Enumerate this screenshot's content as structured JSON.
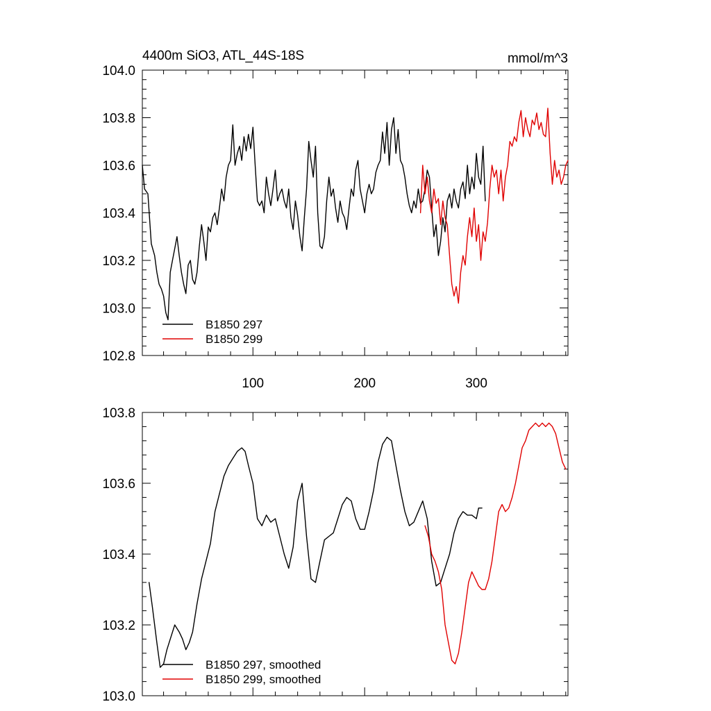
{
  "chart_data": [
    {
      "type": "line",
      "title": "4400m SiO3, ATL_44S-18S",
      "units": "mmol/m^3",
      "xlim": [
        1,
        382
      ],
      "ylim": [
        102.8,
        104.0
      ],
      "x_ticks": [
        100,
        200,
        300
      ],
      "x_tick_labels": [
        "100",
        "200",
        "300"
      ],
      "y_ticks": [
        102.8,
        103.0,
        103.2,
        103.4,
        103.6,
        103.8,
        104.0
      ],
      "y_tick_labels": [
        "102.8",
        "103.0",
        "103.2",
        "103.4",
        "103.6",
        "103.8",
        "104.0"
      ],
      "grid": false,
      "legend_position": "bottom-left",
      "series": [
        {
          "name": "B1850 297",
          "color": "#000000",
          "x": [
            1,
            3,
            6,
            9,
            12,
            14,
            16,
            18,
            20,
            22,
            24,
            26,
            28,
            30,
            32,
            34,
            36,
            38,
            40,
            42,
            44,
            46,
            48,
            50,
            52,
            54,
            56,
            58,
            60,
            62,
            64,
            66,
            68,
            70,
            72,
            74,
            76,
            78,
            80,
            82,
            84,
            86,
            88,
            90,
            92,
            94,
            96,
            98,
            100,
            102,
            104,
            106,
            108,
            110,
            112,
            114,
            116,
            118,
            120,
            122,
            124,
            126,
            128,
            130,
            132,
            134,
            136,
            138,
            140,
            142,
            144,
            146,
            148,
            150,
            152,
            154,
            156,
            158,
            160,
            162,
            164,
            166,
            168,
            170,
            172,
            174,
            176,
            178,
            180,
            182,
            184,
            186,
            188,
            190,
            192,
            194,
            196,
            198,
            200,
            202,
            204,
            206,
            208,
            210,
            212,
            214,
            216,
            218,
            220,
            222,
            224,
            226,
            228,
            230,
            232,
            234,
            236,
            238,
            240,
            242,
            244,
            246,
            248,
            250,
            252,
            254,
            256,
            258,
            260,
            262,
            264,
            266,
            268,
            270,
            272,
            274,
            276,
            278,
            280,
            282,
            284,
            286,
            288,
            290,
            292,
            294,
            296,
            298,
            300,
            302,
            304,
            306,
            308
          ],
          "values": [
            103.6,
            103.5,
            103.48,
            103.27,
            103.22,
            103.15,
            103.1,
            103.08,
            103.05,
            102.98,
            102.95,
            103.15,
            103.2,
            103.25,
            103.3,
            103.22,
            103.15,
            103.1,
            103.06,
            103.18,
            103.2,
            103.12,
            103.1,
            103.15,
            103.26,
            103.35,
            103.28,
            103.2,
            103.34,
            103.32,
            103.38,
            103.4,
            103.35,
            103.42,
            103.5,
            103.45,
            103.55,
            103.6,
            103.62,
            103.77,
            103.6,
            103.65,
            103.68,
            103.62,
            103.72,
            103.66,
            103.73,
            103.67,
            103.76,
            103.6,
            103.45,
            103.43,
            103.45,
            103.4,
            103.55,
            103.48,
            103.43,
            103.5,
            103.58,
            103.45,
            103.48,
            103.5,
            103.45,
            103.42,
            103.5,
            103.38,
            103.33,
            103.45,
            103.39,
            103.3,
            103.24,
            103.38,
            103.5,
            103.7,
            103.62,
            103.55,
            103.68,
            103.4,
            103.26,
            103.25,
            103.3,
            103.45,
            103.55,
            103.47,
            103.5,
            103.42,
            103.36,
            103.45,
            103.4,
            103.38,
            103.33,
            103.42,
            103.5,
            103.47,
            103.58,
            103.62,
            103.5,
            103.45,
            103.4,
            103.48,
            103.52,
            103.48,
            103.5,
            103.57,
            103.6,
            103.62,
            103.74,
            103.65,
            103.78,
            103.6,
            103.75,
            103.8,
            103.65,
            103.75,
            103.62,
            103.6,
            103.55,
            103.48,
            103.43,
            103.4,
            103.45,
            103.42,
            103.5,
            103.44,
            103.45,
            103.5,
            103.58,
            103.55,
            103.42,
            103.3,
            103.35,
            103.22,
            103.28,
            103.38,
            103.32,
            103.45,
            103.48,
            103.42,
            103.5,
            103.45,
            103.42,
            103.5,
            103.53,
            103.46,
            103.6,
            103.48,
            103.55,
            103.5,
            103.65,
            103.55,
            103.52,
            103.68,
            103.45
          ]
        },
        {
          "name": "B1850 299",
          "color": "#e00000",
          "x": [
            250,
            252,
            254,
            256,
            258,
            260,
            262,
            264,
            266,
            268,
            270,
            272,
            274,
            276,
            278,
            280,
            282,
            284,
            286,
            288,
            290,
            292,
            294,
            296,
            298,
            300,
            302,
            304,
            306,
            308,
            310,
            312,
            314,
            316,
            318,
            320,
            322,
            324,
            326,
            328,
            330,
            332,
            334,
            336,
            338,
            340,
            342,
            344,
            346,
            348,
            350,
            352,
            354,
            356,
            358,
            360,
            362,
            364,
            366,
            368,
            370,
            372,
            374,
            376,
            378,
            380,
            382
          ],
          "values": [
            103.4,
            103.6,
            103.48,
            103.55,
            103.45,
            103.4,
            103.5,
            103.44,
            103.46,
            103.35,
            103.45,
            103.38,
            103.35,
            103.22,
            103.1,
            103.05,
            103.09,
            103.02,
            103.15,
            103.22,
            103.18,
            103.3,
            103.38,
            103.3,
            103.42,
            103.28,
            103.35,
            103.2,
            103.32,
            103.28,
            103.36,
            103.5,
            103.6,
            103.55,
            103.58,
            103.48,
            103.58,
            103.45,
            103.55,
            103.6,
            103.7,
            103.68,
            103.72,
            103.7,
            103.78,
            103.83,
            103.72,
            103.8,
            103.75,
            103.72,
            103.79,
            103.77,
            103.82,
            103.75,
            103.78,
            103.73,
            103.72,
            103.84,
            103.65,
            103.52,
            103.62,
            103.55,
            103.58,
            103.52,
            103.55,
            103.6,
            103.62
          ]
        }
      ]
    },
    {
      "type": "line",
      "xlim": [
        1,
        382
      ],
      "ylim": [
        103.0,
        103.8
      ],
      "x_ticks": [
        100,
        200,
        300
      ],
      "y_ticks": [
        103.0,
        103.2,
        103.4,
        103.6,
        103.8
      ],
      "y_tick_labels": [
        "103.0",
        "103.2",
        "103.4",
        "103.6",
        "103.8"
      ],
      "grid": false,
      "legend_position": "bottom-left",
      "series": [
        {
          "name": "B1850 297, smoothed",
          "color": "#000000",
          "x": [
            7,
            10,
            14,
            17,
            20,
            23,
            26,
            30,
            34,
            37,
            40,
            43,
            46,
            50,
            54,
            58,
            62,
            66,
            70,
            74,
            78,
            82,
            86,
            90,
            93,
            96,
            100,
            104,
            108,
            112,
            116,
            120,
            124,
            128,
            132,
            136,
            140,
            144,
            148,
            152,
            156,
            160,
            164,
            168,
            172,
            176,
            180,
            184,
            188,
            192,
            196,
            200,
            204,
            208,
            212,
            216,
            220,
            224,
            228,
            232,
            236,
            240,
            244,
            248,
            252,
            256,
            260,
            264,
            268,
            272,
            276,
            280,
            284,
            288,
            292,
            296,
            300,
            302,
            305
          ],
          "values": [
            103.32,
            103.25,
            103.15,
            103.08,
            103.09,
            103.13,
            103.16,
            103.2,
            103.18,
            103.16,
            103.13,
            103.15,
            103.18,
            103.26,
            103.33,
            103.38,
            103.43,
            103.52,
            103.57,
            103.62,
            103.65,
            103.67,
            103.69,
            103.7,
            103.69,
            103.65,
            103.6,
            103.5,
            103.48,
            103.51,
            103.49,
            103.5,
            103.45,
            103.4,
            103.36,
            103.42,
            103.55,
            103.6,
            103.45,
            103.33,
            103.32,
            103.38,
            103.44,
            103.45,
            103.46,
            103.5,
            103.54,
            103.56,
            103.55,
            103.5,
            103.47,
            103.47,
            103.52,
            103.58,
            103.66,
            103.71,
            103.73,
            103.72,
            103.65,
            103.58,
            103.52,
            103.48,
            103.49,
            103.52,
            103.55,
            103.5,
            103.38,
            103.31,
            103.32,
            103.36,
            103.4,
            103.46,
            103.5,
            103.52,
            103.51,
            103.51,
            103.5,
            103.53,
            103.53
          ]
        },
        {
          "name": "B1850 299, smoothed",
          "color": "#e00000",
          "x": [
            254,
            257,
            260,
            263,
            266,
            269,
            272,
            275,
            278,
            281,
            284,
            287,
            290,
            293,
            296,
            299,
            302,
            305,
            308,
            311,
            314,
            317,
            320,
            323,
            326,
            329,
            332,
            335,
            338,
            341,
            344,
            347,
            350,
            353,
            356,
            359,
            362,
            365,
            368,
            371,
            374,
            377,
            380
          ],
          "values": [
            103.48,
            103.45,
            103.4,
            103.38,
            103.35,
            103.3,
            103.2,
            103.15,
            103.1,
            103.09,
            103.12,
            103.18,
            103.25,
            103.32,
            103.35,
            103.33,
            103.31,
            103.3,
            103.3,
            103.33,
            103.38,
            103.45,
            103.52,
            103.54,
            103.52,
            103.53,
            103.56,
            103.6,
            103.65,
            103.7,
            103.72,
            103.75,
            103.76,
            103.77,
            103.76,
            103.77,
            103.76,
            103.77,
            103.76,
            103.74,
            103.7,
            103.66,
            103.64
          ]
        }
      ]
    }
  ]
}
